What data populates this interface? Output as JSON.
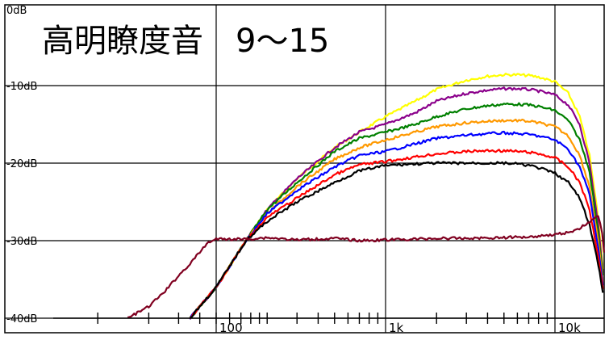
{
  "chart_data": {
    "type": "line",
    "title": "高明瞭度音　9～15",
    "xlabel": "",
    "ylabel": "",
    "x_scale": "log",
    "xlim": [
      20,
      20000
    ],
    "ylim": [
      -40,
      0
    ],
    "grid": true,
    "y_ticks": [
      "0dB",
      "-10dB",
      "-20dB",
      "-30dB",
      "-40dB"
    ],
    "y_tick_values": [
      0,
      -10,
      -20,
      -30,
      -40
    ],
    "x_ticks": [
      "100",
      "1k",
      "10k"
    ],
    "x_tick_values": [
      100,
      1000,
      10000
    ],
    "series": [
      {
        "color": "#ffff00",
        "x": [
          70,
          100,
          150,
          200,
          300,
          500,
          700,
          1000,
          1500,
          2000,
          3000,
          4000,
          5000,
          6000,
          7000,
          8000,
          10000,
          12000,
          14000,
          16000,
          18000,
          20000
        ],
        "y": [
          -40,
          -36,
          -30,
          -26,
          -22,
          -18,
          -16,
          -14,
          -12,
          -10.5,
          -9.3,
          -8.8,
          -8.6,
          -8.6,
          -8.7,
          -8.9,
          -9.5,
          -11,
          -14,
          -19,
          -27,
          -38
        ]
      },
      {
        "color": "#8b008b",
        "x": [
          70,
          100,
          150,
          200,
          300,
          500,
          700,
          1000,
          1500,
          2000,
          3000,
          4000,
          5000,
          6000,
          7000,
          8000,
          10000,
          12000,
          14000,
          16000,
          18000,
          20000
        ],
        "y": [
          -40,
          -36,
          -30,
          -26,
          -22,
          -18,
          -16,
          -15,
          -13.5,
          -12,
          -11,
          -10.6,
          -10.4,
          -10.4,
          -10.5,
          -10.7,
          -11.2,
          -12.5,
          -15,
          -20,
          -28,
          -38
        ]
      },
      {
        "color": "#008000",
        "x": [
          70,
          100,
          150,
          200,
          300,
          500,
          700,
          1000,
          1500,
          2000,
          3000,
          4000,
          5000,
          6000,
          7000,
          8000,
          10000,
          12000,
          14000,
          16000,
          18000,
          20000
        ],
        "y": [
          -40,
          -36,
          -30,
          -26,
          -22.5,
          -18.5,
          -16.8,
          -16,
          -15,
          -14,
          -13,
          -12.6,
          -12.4,
          -12.4,
          -12.5,
          -12.7,
          -13.2,
          -14.5,
          -17,
          -21,
          -29,
          -38
        ]
      },
      {
        "color": "#ff9900",
        "x": [
          70,
          100,
          150,
          200,
          300,
          500,
          700,
          1000,
          1500,
          2000,
          3000,
          4000,
          5000,
          6000,
          7000,
          8000,
          10000,
          12000,
          14000,
          16000,
          18000,
          20000
        ],
        "y": [
          -40,
          -36,
          -30,
          -26.5,
          -23,
          -19.5,
          -18,
          -17,
          -16,
          -15.3,
          -14.8,
          -14.6,
          -14.5,
          -14.5,
          -14.6,
          -14.8,
          -15.3,
          -16.5,
          -19,
          -23,
          -30,
          -39
        ]
      },
      {
        "color": "#0000ff",
        "x": [
          70,
          100,
          150,
          200,
          300,
          500,
          700,
          1000,
          1500,
          2000,
          3000,
          4000,
          5000,
          6000,
          7000,
          8000,
          10000,
          12000,
          14000,
          16000,
          18000,
          20000
        ],
        "y": [
          -40,
          -36,
          -30,
          -26.5,
          -23.5,
          -20.5,
          -19,
          -18.5,
          -17.5,
          -16.8,
          -16.4,
          -16.2,
          -16.1,
          -16.2,
          -16.3,
          -16.5,
          -17,
          -18.2,
          -20.5,
          -24,
          -31,
          -39
        ]
      },
      {
        "color": "#ff0000",
        "x": [
          70,
          100,
          150,
          200,
          300,
          500,
          700,
          1000,
          1500,
          2000,
          3000,
          4000,
          5000,
          6000,
          7000,
          8000,
          10000,
          12000,
          14000,
          16000,
          18000,
          20000
        ],
        "y": [
          -40,
          -36,
          -30,
          -27,
          -24.5,
          -21.5,
          -20.2,
          -19.8,
          -19.2,
          -18.8,
          -18.5,
          -18.4,
          -18.4,
          -18.5,
          -18.6,
          -18.8,
          -19.3,
          -20.5,
          -22.5,
          -26,
          -32,
          -39
        ]
      },
      {
        "color": "#000000",
        "x": [
          70,
          100,
          150,
          200,
          300,
          500,
          700,
          1000,
          1500,
          2000,
          3000,
          4000,
          5000,
          6000,
          7000,
          8000,
          10000,
          12000,
          14000,
          16000,
          18000,
          20000
        ],
        "y": [
          -40,
          -36,
          -30,
          -27.5,
          -25,
          -22.5,
          -21,
          -20.3,
          -20.1,
          -20,
          -20,
          -20,
          -20,
          -20.1,
          -20.3,
          -20.6,
          -21.3,
          -22.5,
          -24.5,
          -28,
          -33,
          -39
        ]
      },
      {
        "color": "#800020",
        "x": [
          30,
          40,
          50,
          60,
          70,
          80,
          90,
          100,
          150,
          200,
          300,
          500,
          700,
          1000,
          1500,
          2000,
          3000,
          5000,
          7000,
          10000,
          13000,
          16000,
          18000,
          19000,
          20000
        ],
        "y": [
          -40,
          -38.5,
          -36.5,
          -34.5,
          -33,
          -31.5,
          -30.2,
          -29.8,
          -29.8,
          -29.6,
          -29.9,
          -29.7,
          -30,
          -29.9,
          -29.8,
          -29.7,
          -29.7,
          -29.6,
          -29.5,
          -29.2,
          -28.8,
          -27.6,
          -26.8,
          -29,
          -34
        ]
      }
    ]
  }
}
